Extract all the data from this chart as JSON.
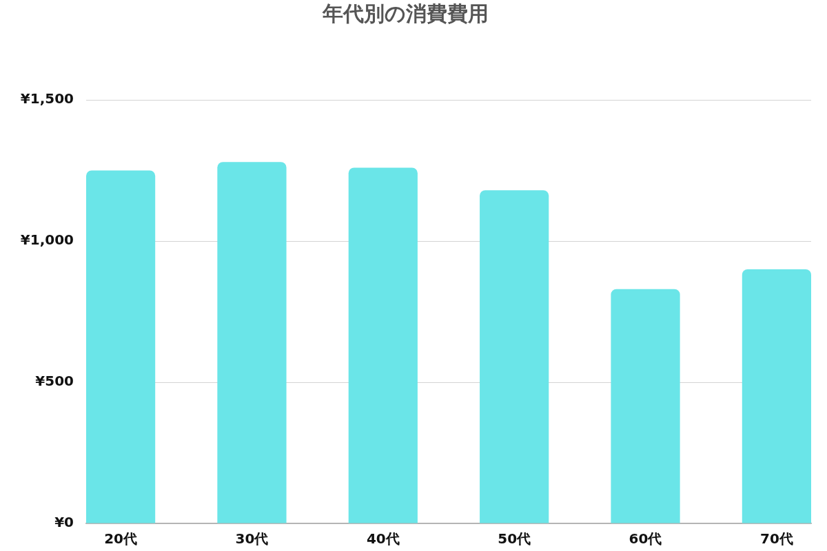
{
  "chart_data": {
    "type": "bar",
    "title": "年代別の消費費用",
    "categories": [
      "20代",
      "30代",
      "40代",
      "50代",
      "60代",
      "70代"
    ],
    "values": [
      1250,
      1280,
      1260,
      1180,
      830,
      900
    ],
    "color": "#6ae5e8",
    "ylim": [
      0,
      1500
    ],
    "yticks": [
      {
        "value": 0,
        "label": "¥0"
      },
      {
        "value": 500,
        "label": "¥500"
      },
      {
        "value": 1000,
        "label": "¥1,000"
      },
      {
        "value": 1500,
        "label": "¥1,500"
      }
    ],
    "grid": "y"
  }
}
